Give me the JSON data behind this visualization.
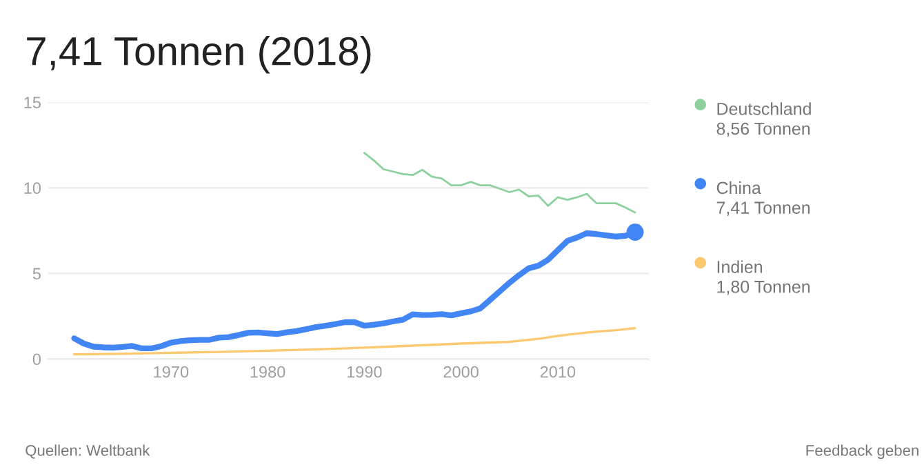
{
  "chart_data": {
    "type": "line",
    "title": "7,41 Tonnen (2018)",
    "xlim": [
      1957.3,
      2019.4
    ],
    "xticks": [
      1970,
      1980,
      1990,
      2000,
      2010
    ],
    "ylim": [
      0,
      15
    ],
    "yticks": [
      0,
      5,
      10,
      15
    ],
    "grid": "y",
    "legend": "right",
    "series": [
      {
        "name": "Deutschland\n8,56 Tonnen",
        "color": "#8fd19e",
        "x": [
          1990,
          1991,
          1992,
          1993,
          1994,
          1995,
          1996,
          1997,
          1998,
          1999,
          2000,
          2001,
          2002,
          2003,
          2004,
          2005,
          2006,
          2007,
          2008,
          2009,
          2010,
          2011,
          2012,
          2013,
          2014,
          2015,
          2016,
          2017,
          2018
        ],
        "values": [
          12.04,
          11.6,
          11.08,
          10.95,
          10.8,
          10.75,
          11.05,
          10.65,
          10.55,
          10.15,
          10.15,
          10.35,
          10.15,
          10.15,
          9.95,
          9.75,
          9.9,
          9.5,
          9.55,
          8.95,
          9.45,
          9.3,
          9.45,
          9.65,
          9.1,
          9.1,
          9.1,
          8.85,
          8.56
        ]
      },
      {
        "name": "China\n7,41 Tonnen",
        "color": "#4285f4",
        "x": [
          1960,
          1961,
          1962,
          1963,
          1964,
          1965,
          1966,
          1967,
          1968,
          1969,
          1970,
          1971,
          1972,
          1973,
          1974,
          1975,
          1976,
          1977,
          1978,
          1979,
          1980,
          1981,
          1982,
          1983,
          1984,
          1985,
          1986,
          1987,
          1988,
          1989,
          1990,
          1991,
          1992,
          1993,
          1994,
          1995,
          1996,
          1997,
          1998,
          1999,
          2000,
          2001,
          2002,
          2003,
          2004,
          2005,
          2006,
          2007,
          2008,
          2009,
          2010,
          2011,
          2012,
          2013,
          2014,
          2015,
          2016,
          2017,
          2018
        ],
        "values": [
          1.21,
          0.9,
          0.72,
          0.68,
          0.66,
          0.7,
          0.76,
          0.62,
          0.62,
          0.75,
          0.95,
          1.05,
          1.1,
          1.12,
          1.12,
          1.25,
          1.28,
          1.4,
          1.53,
          1.55,
          1.5,
          1.46,
          1.56,
          1.63,
          1.74,
          1.86,
          1.94,
          2.04,
          2.15,
          2.15,
          1.94,
          2.0,
          2.08,
          2.2,
          2.3,
          2.61,
          2.57,
          2.58,
          2.62,
          2.55,
          2.67,
          2.78,
          2.96,
          3.45,
          3.95,
          4.45,
          4.9,
          5.3,
          5.45,
          5.8,
          6.35,
          6.9,
          7.1,
          7.35,
          7.3,
          7.22,
          7.15,
          7.2,
          7.41
        ]
      },
      {
        "name": "Indien\n1,80 Tonnen",
        "color": "#fcc870",
        "x": [
          1960,
          1965,
          1970,
          1975,
          1980,
          1985,
          1990,
          1995,
          2000,
          2005,
          2008,
          2010,
          2012,
          2014,
          2016,
          2018
        ],
        "values": [
          0.27,
          0.3,
          0.36,
          0.41,
          0.48,
          0.56,
          0.66,
          0.78,
          0.9,
          1.0,
          1.18,
          1.35,
          1.48,
          1.6,
          1.68,
          1.8
        ]
      },
      {
        "type": "scatter",
        "color": "#4285f4",
        "x": [
          2018
        ],
        "values": [
          7.41
        ]
      }
    ],
    "annotations": [
      "Quellen: Weltbank",
      "Feedback geben"
    ]
  }
}
